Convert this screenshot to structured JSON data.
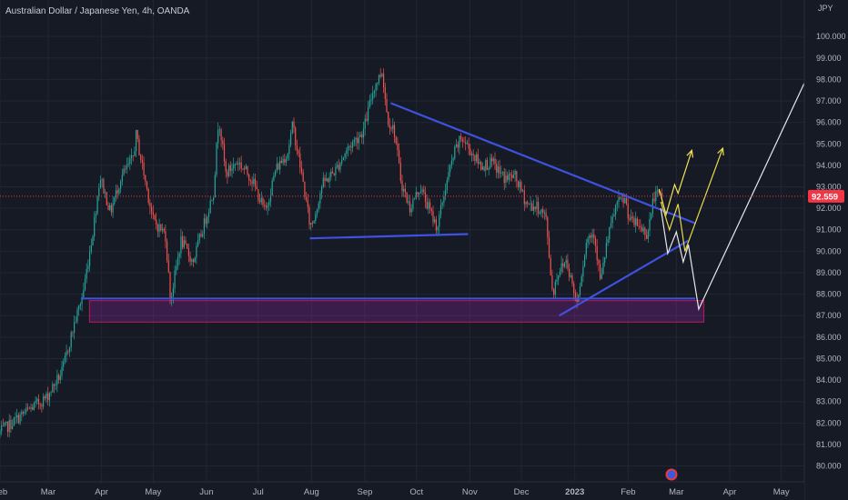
{
  "chart_data": {
    "type": "candlestick",
    "title": "Australian Dollar / Japanese Yen, 4h, OANDA",
    "currency_label": "JPY",
    "current_price": "92.559",
    "ylim": [
      79.6,
      100.6
    ],
    "y_ticks": [
      "80.000",
      "81.000",
      "82.000",
      "83.000",
      "84.000",
      "85.000",
      "86.000",
      "87.000",
      "88.000",
      "89.000",
      "90.000",
      "91.000",
      "92.000",
      "93.000",
      "94.000",
      "95.000",
      "96.000",
      "97.000",
      "98.000",
      "99.000",
      "100.000"
    ],
    "x_ticks": [
      "Feb",
      "Mar",
      "Apr",
      "May",
      "Jun",
      "Jul",
      "Aug",
      "Sep",
      "Oct",
      "Nov",
      "Dec",
      "2023",
      "Feb",
      "Mar",
      "Apr",
      "May"
    ],
    "anchors": [
      [
        "2022-02-01",
        81.5
      ],
      [
        "2022-02-15",
        82.4
      ],
      [
        "2022-03-01",
        83.2
      ],
      [
        "2022-03-10",
        84.4
      ],
      [
        "2022-03-17",
        86.6
      ],
      [
        "2022-03-22",
        88.0
      ],
      [
        "2022-03-28",
        91.0
      ],
      [
        "2022-04-01",
        93.5
      ],
      [
        "2022-04-07",
        91.8
      ],
      [
        "2022-04-13",
        93.4
      ],
      [
        "2022-04-20",
        94.3
      ],
      [
        "2022-04-22",
        95.4
      ],
      [
        "2022-04-27",
        93.4
      ],
      [
        "2022-05-02",
        91.4
      ],
      [
        "2022-05-09",
        90.8
      ],
      [
        "2022-05-12",
        87.7
      ],
      [
        "2022-05-18",
        90.5
      ],
      [
        "2022-05-25",
        89.5
      ],
      [
        "2022-06-01",
        91.4
      ],
      [
        "2022-06-06",
        92.8
      ],
      [
        "2022-06-09",
        96.3
      ],
      [
        "2022-06-13",
        93.6
      ],
      [
        "2022-06-20",
        94.2
      ],
      [
        "2022-06-28",
        93.4
      ],
      [
        "2022-07-06",
        91.8
      ],
      [
        "2022-07-12",
        93.8
      ],
      [
        "2022-07-19",
        94.6
      ],
      [
        "2022-07-22",
        95.9
      ],
      [
        "2022-07-28",
        93.2
      ],
      [
        "2022-08-01",
        91.2
      ],
      [
        "2022-08-03",
        91.4
      ],
      [
        "2022-08-08",
        93.1
      ],
      [
        "2022-08-16",
        93.8
      ],
      [
        "2022-08-23",
        94.8
      ],
      [
        "2022-09-01",
        95.6
      ],
      [
        "2022-09-07",
        97.6
      ],
      [
        "2022-09-12",
        98.4
      ],
      [
        "2022-09-15",
        96.2
      ],
      [
        "2022-09-19",
        95.6
      ],
      [
        "2022-09-23",
        93.2
      ],
      [
        "2022-09-28",
        92.0
      ],
      [
        "2022-10-04",
        93.0
      ],
      [
        "2022-10-10",
        91.8
      ],
      [
        "2022-10-14",
        91.1
      ],
      [
        "2022-10-19",
        93.1
      ],
      [
        "2022-10-24",
        94.6
      ],
      [
        "2022-10-28",
        95.3
      ],
      [
        "2022-11-03",
        94.6
      ],
      [
        "2022-11-08",
        94.0
      ],
      [
        "2022-11-15",
        94.1
      ],
      [
        "2022-11-22",
        93.4
      ],
      [
        "2022-11-28",
        93.5
      ],
      [
        "2022-12-05",
        92.2
      ],
      [
        "2022-12-12",
        92.0
      ],
      [
        "2022-12-16",
        91.6
      ],
      [
        "2022-12-20",
        88.0
      ],
      [
        "2022-12-23",
        89.0
      ],
      [
        "2022-12-28",
        89.6
      ],
      [
        "2023-01-03",
        87.6
      ],
      [
        "2023-01-09",
        90.6
      ],
      [
        "2023-01-13",
        90.9
      ],
      [
        "2023-01-17",
        88.5
      ],
      [
        "2023-01-20",
        90.2
      ],
      [
        "2023-01-26",
        92.2
      ],
      [
        "2023-01-31",
        92.4
      ],
      [
        "2023-02-03",
        91.4
      ],
      [
        "2023-02-08",
        91.2
      ],
      [
        "2023-02-13",
        90.8
      ],
      [
        "2023-02-17",
        92.6
      ],
      [
        "2023-02-21",
        92.56
      ]
    ],
    "annotations": {
      "support_zone": {
        "from": "2022-03-25",
        "to": "2023-03-17",
        "y1": 86.7,
        "y2": 87.7,
        "color": "#9c27b0"
      },
      "support_line": {
        "from": "2022-03-20",
        "to": "2023-03-12",
        "y": 87.8,
        "color": "#3f51e0"
      },
      "resistance_trendline": {
        "from": [
          "2022-09-16",
          96.9
        ],
        "to": [
          "2023-03-12",
          91.3
        ],
        "color": "#3f51e0"
      },
      "august_low_line": {
        "from": [
          "2022-07-31",
          90.6
        ],
        "to": [
          "2022-10-31",
          90.8
        ],
        "color": "#3f51e0"
      },
      "rising_trendline": {
        "from": [
          "2022-12-23",
          87.0
        ],
        "to": [
          "2023-03-08",
          90.5
        ],
        "color": "#3f51e0"
      },
      "yellow_path_1": {
        "points": [
          [
            "2023-02-19",
            92.9
          ],
          [
            "2023-02-23",
            91.7
          ],
          [
            "2023-02-28",
            93.1
          ],
          [
            "2023-03-02",
            92.7
          ],
          [
            "2023-03-10",
            94.7
          ]
        ],
        "color": "#f2e15a"
      },
      "yellow_path_2": {
        "points": [
          [
            "2023-02-20",
            92.3
          ],
          [
            "2023-02-25",
            91.0
          ],
          [
            "2023-03-02",
            92.2
          ],
          [
            "2023-03-06",
            90.0
          ],
          [
            "2023-03-28",
            94.8
          ]
        ],
        "color": "#e6d94a"
      },
      "white_path": {
        "points": [
          [
            "2023-02-20",
            92.0
          ],
          [
            "2023-02-24",
            89.9
          ],
          [
            "2023-03-01",
            90.9
          ],
          [
            "2023-03-05",
            89.5
          ],
          [
            "2023-03-08",
            90.3
          ],
          [
            "2023-03-14",
            87.3
          ],
          [
            "2023-05-20",
            98.8
          ]
        ],
        "color": "#e8e8e8"
      }
    },
    "colors": {
      "up": "#26a69a",
      "down": "#ef5350",
      "background": "#161a25",
      "grid": "#222633",
      "price_tag": "#f23645"
    }
  }
}
